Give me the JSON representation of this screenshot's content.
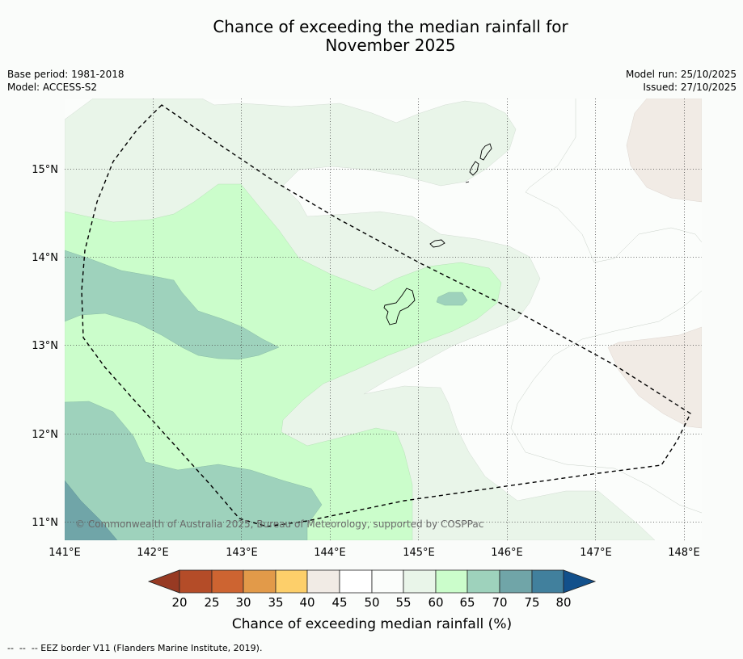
{
  "title_line1": "Chance of exceeding the median rainfall for",
  "title_line2": "November 2025",
  "meta": {
    "base_period": "Base period: 1981-2018",
    "model": "Model: ACCESS-S2",
    "model_run": "Model run: 25/10/2025",
    "issued": "Issued: 27/10/2025"
  },
  "map": {
    "lon_labels": [
      "141°E",
      "142°E",
      "143°E",
      "144°E",
      "145°E",
      "146°E",
      "147°E",
      "148°E"
    ],
    "lat_labels": [
      "15°N",
      "14°N",
      "13°N",
      "12°N",
      "11°N"
    ],
    "copyright": "© Commonwealth of Australia 2025, Bureau of Meteorology, supported by COSPPac"
  },
  "legend": {
    "ticks": [
      "20",
      "25",
      "30",
      "35",
      "40",
      "45",
      "50",
      "55",
      "60",
      "65",
      "70",
      "75",
      "80"
    ],
    "colors": {
      "below_20": "#973a23",
      "c20_25": "#b44c28",
      "c25_30": "#cd6431",
      "c30_35": "#e29a49",
      "c35_40": "#fdcf6a",
      "c40_45": "#f1ebe5",
      "c45_50": "#ffffff",
      "c50_55": "#fbfdfb",
      "c55_60": "#e9f5e9",
      "c60_65": "#cbfdcb",
      "c65_70": "#9ed2bc",
      "c70_75": "#70a5a8",
      "c75_80": "#41809d",
      "above_80": "#12508b"
    },
    "label": "Chance of exceeding median rainfall (%)"
  },
  "footer": "--  --  -- EEZ border V11 (Flanders Marine Institute, 2019)."
}
